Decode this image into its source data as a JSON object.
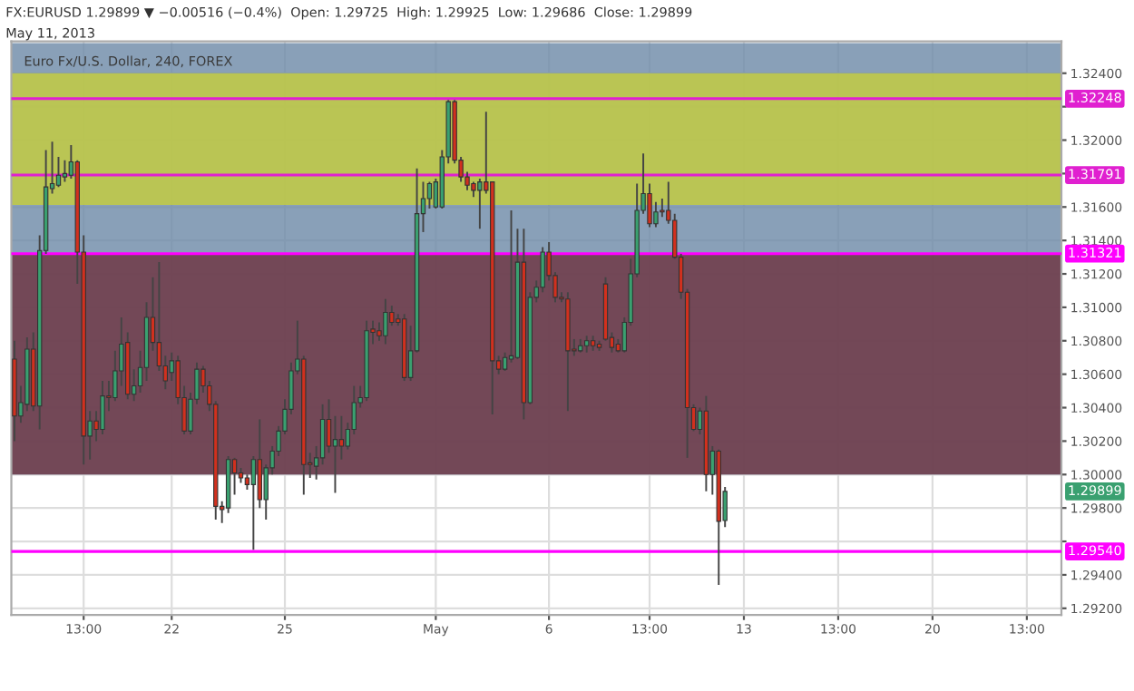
{
  "chart_data": {
    "type": "candlestick",
    "title": "FX:EURUSD 1.29899 ▼ −0.00516 (−0.4%)  Open: 1.29725  High: 1.29925  Low: 1.29686  Close: 1.29899",
    "subtitle": "May 11, 2013",
    "annotations": [
      "Euro Fx/U.S. Dollar, 240, FOREX",
      {
        "text": "1.29899",
        "y": 1.29899
      }
    ],
    "categories": [
      null,
      null,
      null,
      null,
      null,
      null,
      null,
      null,
      null,
      null,
      null,
      "13:00",
      null,
      null,
      null,
      null,
      null,
      null,
      null,
      null,
      null,
      null,
      null,
      null,
      null,
      "22",
      null,
      null,
      null,
      null,
      null,
      null,
      null,
      null,
      null,
      null,
      null,
      null,
      null,
      null,
      null,
      null,
      null,
      "25",
      null,
      null,
      null,
      null,
      null,
      null,
      null,
      null,
      null,
      null,
      null,
      null,
      null,
      null,
      null,
      null,
      null,
      null,
      null,
      null,
      null,
      null,
      null,
      "May",
      null,
      null,
      null,
      null,
      null,
      null,
      null,
      null,
      null,
      null,
      null,
      null,
      null,
      null,
      null,
      null,
      null,
      "6",
      null,
      null,
      null,
      null,
      null,
      null,
      null,
      null,
      null,
      null,
      null,
      null,
      null,
      null,
      null,
      "13:00",
      null,
      null,
      null,
      null,
      null,
      null,
      null,
      null,
      null,
      null,
      null,
      null,
      null,
      null,
      "13",
      null,
      null,
      null,
      null,
      null,
      null,
      null,
      null,
      null,
      null,
      null,
      null,
      null,
      null,
      "13:00",
      null,
      null,
      null,
      null,
      null,
      null,
      null,
      null,
      null,
      null,
      null,
      null,
      null,
      null,
      "20",
      null,
      null,
      null,
      null,
      null,
      null,
      null,
      null,
      null,
      null,
      null,
      null,
      null,
      null,
      "13:00",
      null,
      null,
      null,
      null,
      null
    ],
    "ohlc": [
      [
        1.3069,
        1.308,
        1.302,
        1.3035
      ],
      [
        1.3035,
        1.3053,
        1.3031,
        1.3043
      ],
      [
        1.3042,
        1.3082,
        1.3038,
        1.3075
      ],
      [
        1.3075,
        1.3085,
        1.3038,
        1.3041
      ],
      [
        1.3041,
        1.3143,
        1.3027,
        1.3134
      ],
      [
        1.3134,
        1.3194,
        1.3132,
        1.3172
      ],
      [
        1.3171,
        1.3199,
        1.3168,
        1.3174
      ],
      [
        1.3173,
        1.319,
        1.3172,
        1.3179
      ],
      [
        1.3178,
        1.3188,
        1.3175,
        1.318
      ],
      [
        1.3179,
        1.3197,
        1.3177,
        1.3187
      ],
      [
        1.3187,
        1.3188,
        1.3114,
        1.3133
      ],
      [
        1.3133,
        1.3143,
        1.3006,
        1.3023
      ],
      [
        1.3023,
        1.3038,
        1.3009,
        1.3032
      ],
      [
        1.3032,
        1.3038,
        1.302,
        1.3027
      ],
      [
        1.3027,
        1.3056,
        1.3024,
        1.3047
      ],
      [
        1.3047,
        1.3056,
        1.3038,
        1.3046
      ],
      [
        1.3046,
        1.3074,
        1.3044,
        1.3062
      ],
      [
        1.3062,
        1.3094,
        1.3053,
        1.3078
      ],
      [
        1.3079,
        1.3085,
        1.3045,
        1.3048
      ],
      [
        1.3048,
        1.3063,
        1.3044,
        1.3053
      ],
      [
        1.3053,
        1.3074,
        1.3049,
        1.3064
      ],
      [
        1.3064,
        1.3103,
        1.3056,
        1.3094
      ],
      [
        1.3094,
        1.3118,
        1.3074,
        1.3079
      ],
      [
        1.3079,
        1.3127,
        1.3062,
        1.3065
      ],
      [
        1.3065,
        1.3071,
        1.3051,
        1.3056
      ],
      [
        1.3061,
        1.3073,
        1.3056,
        1.3068
      ],
      [
        1.3068,
        1.3071,
        1.3042,
        1.3046
      ],
      [
        1.3046,
        1.3053,
        1.3024,
        1.3026
      ],
      [
        1.3026,
        1.3049,
        1.3024,
        1.3045
      ],
      [
        1.3045,
        1.3067,
        1.3042,
        1.3063
      ],
      [
        1.3063,
        1.3065,
        1.3049,
        1.3053
      ],
      [
        1.3053,
        1.3056,
        1.3038,
        1.3042
      ],
      [
        1.3042,
        1.3044,
        1.2973,
        1.2981
      ],
      [
        1.2981,
        1.2984,
        1.2971,
        1.2979
      ],
      [
        1.298,
        1.3011,
        1.2977,
        1.3009
      ],
      [
        1.3009,
        1.301,
        1.2988,
        1.3001
      ],
      [
        1.3001,
        1.3004,
        1.2995,
        1.2998
      ],
      [
        1.2998,
        1.3,
        1.2991,
        1.2994
      ],
      [
        1.2994,
        1.3011,
        1.2955,
        1.3009
      ],
      [
        1.3009,
        1.3033,
        1.298,
        1.2985
      ],
      [
        1.2985,
        1.3006,
        1.2973,
        1.3004
      ],
      [
        1.3004,
        1.3017,
        1.3,
        1.3014
      ],
      [
        1.3014,
        1.3029,
        1.3011,
        1.3026
      ],
      [
        1.3026,
        1.3045,
        1.3024,
        1.3039
      ],
      [
        1.3039,
        1.3067,
        1.3036,
        1.3062
      ],
      [
        1.3062,
        1.3092,
        1.306,
        1.3069
      ],
      [
        1.3069,
        1.3071,
        1.2988,
        1.3006
      ],
      [
        1.3007,
        1.3013,
        1.2998,
        1.3006
      ],
      [
        1.3005,
        1.3017,
        1.2997,
        1.301
      ],
      [
        1.301,
        1.3042,
        1.3006,
        1.3033
      ],
      [
        1.3033,
        1.3045,
        1.3013,
        1.3017
      ],
      [
        1.3017,
        1.3035,
        1.2989,
        1.3021
      ],
      [
        1.3021,
        1.3035,
        1.3009,
        1.3017
      ],
      [
        1.3017,
        1.3031,
        1.3015,
        1.3027
      ],
      [
        1.3027,
        1.3053,
        1.3024,
        1.3043
      ],
      [
        1.3043,
        1.3053,
        1.304,
        1.3046
      ],
      [
        1.3046,
        1.3092,
        1.3044,
        1.3086
      ],
      [
        1.3087,
        1.3092,
        1.3078,
        1.3085
      ],
      [
        1.3086,
        1.3091,
        1.308,
        1.3083
      ],
      [
        1.3083,
        1.3105,
        1.3078,
        1.3097
      ],
      [
        1.3097,
        1.3101,
        1.3089,
        1.3091
      ],
      [
        1.3093,
        1.3096,
        1.3089,
        1.3091
      ],
      [
        1.3093,
        1.3096,
        1.3056,
        1.3058
      ],
      [
        1.3058,
        1.3089,
        1.3056,
        1.3074
      ],
      [
        1.3074,
        1.3183,
        1.3073,
        1.3156
      ],
      [
        1.3156,
        1.3175,
        1.3145,
        1.3165
      ],
      [
        1.3165,
        1.3175,
        1.3159,
        1.3174
      ],
      [
        1.316,
        1.3177,
        1.3159,
        1.3175
      ],
      [
        1.316,
        1.3194,
        1.3159,
        1.319
      ],
      [
        1.319,
        1.3224,
        1.3186,
        1.3223
      ],
      [
        1.3223,
        1.3224,
        1.3186,
        1.3188
      ],
      [
        1.3188,
        1.319,
        1.3175,
        1.3178
      ],
      [
        1.3178,
        1.3181,
        1.317,
        1.3173
      ],
      [
        1.3174,
        1.3175,
        1.3166,
        1.317
      ],
      [
        1.317,
        1.3177,
        1.3147,
        1.3175
      ],
      [
        1.3175,
        1.3217,
        1.3168,
        1.317
      ],
      [
        1.3175,
        1.3175,
        1.3036,
        1.3068
      ],
      [
        1.3068,
        1.3071,
        1.306,
        1.3063
      ],
      [
        1.3063,
        1.3073,
        1.3062,
        1.307
      ],
      [
        1.3069,
        1.3158,
        1.3067,
        1.3071
      ],
      [
        1.307,
        1.3147,
        1.3069,
        1.3127
      ],
      [
        1.3127,
        1.3147,
        1.3033,
        1.3043
      ],
      [
        1.3043,
        1.3109,
        1.3042,
        1.3106
      ],
      [
        1.3106,
        1.3116,
        1.3103,
        1.3112
      ],
      [
        1.3112,
        1.3136,
        1.3109,
        1.3133
      ],
      [
        1.3133,
        1.3139,
        1.3116,
        1.3119
      ],
      [
        1.3119,
        1.3121,
        1.3103,
        1.3106
      ],
      [
        1.3106,
        1.3109,
        1.3103,
        1.3105
      ],
      [
        1.3105,
        1.3109,
        1.3038,
        1.3074
      ],
      [
        1.3075,
        1.3081,
        1.3071,
        1.3074
      ],
      [
        1.3074,
        1.3081,
        1.3073,
        1.3077
      ],
      [
        1.3077,
        1.3083,
        1.3073,
        1.308
      ],
      [
        1.308,
        1.3083,
        1.3074,
        1.3077
      ],
      [
        1.3078,
        1.308,
        1.3074,
        1.3076
      ],
      [
        1.3114,
        1.3118,
        1.308,
        1.3081
      ],
      [
        1.3082,
        1.3085,
        1.3073,
        1.3076
      ],
      [
        1.3078,
        1.3081,
        1.3073,
        1.3074
      ],
      [
        1.3074,
        1.3094,
        1.3073,
        1.3091
      ],
      [
        1.3091,
        1.3129,
        1.3089,
        1.312
      ],
      [
        1.312,
        1.3174,
        1.3118,
        1.3158
      ],
      [
        1.3158,
        1.3192,
        1.3156,
        1.3168
      ],
      [
        1.3168,
        1.3174,
        1.3148,
        1.315
      ],
      [
        1.315,
        1.3163,
        1.3148,
        1.3157
      ],
      [
        1.3158,
        1.3165,
        1.3154,
        1.3157
      ],
      [
        1.3158,
        1.3175,
        1.315,
        1.3152
      ],
      [
        1.3152,
        1.3156,
        1.3129,
        1.313
      ],
      [
        1.313,
        1.3132,
        1.3105,
        1.3109
      ],
      [
        1.3109,
        1.3111,
        1.301,
        1.304
      ],
      [
        1.304,
        1.3042,
        1.3026,
        1.3027
      ],
      [
        1.3027,
        1.304,
        1.3024,
        1.3038
      ],
      [
        1.3038,
        1.3047,
        1.299,
        1.3
      ],
      [
        1.3,
        1.3017,
        1.2988,
        1.3014
      ],
      [
        1.3014,
        1.3015,
        1.2934,
        1.2972
      ],
      [
        1.29725,
        1.29925,
        1.29686,
        1.29899
      ],
      null,
      null,
      null,
      null,
      null,
      null,
      null,
      null,
      null,
      null,
      null,
      null,
      null,
      null,
      null,
      null,
      null,
      null,
      null,
      null,
      null,
      null,
      null,
      null,
      null,
      null,
      null,
      null,
      null,
      null,
      null,
      null,
      null,
      null,
      null,
      null,
      null,
      null,
      null,
      null,
      null,
      null,
      null,
      null,
      null,
      null,
      null,
      null,
      null,
      null,
      null,
      null,
      null
    ],
    "ylim": [
      1.2916,
      1.3259
    ],
    "yticks": [
      {
        "value": 1.292,
        "label": "1.29200"
      },
      {
        "value": 1.294,
        "label": "1.29400"
      },
      {
        "value": 1.296,
        "label": null
      },
      {
        "value": 1.298,
        "label": "1.29800"
      },
      {
        "value": 1.3,
        "label": "1.30000"
      },
      {
        "value": 1.302,
        "label": "1.30200"
      },
      {
        "value": 1.304,
        "label": "1.30400"
      },
      {
        "value": 1.306,
        "label": "1.30600"
      },
      {
        "value": 1.308,
        "label": "1.30800"
      },
      {
        "value": 1.31,
        "label": "1.31000"
      },
      {
        "value": 1.312,
        "label": "1.31200"
      },
      {
        "value": 1.314,
        "label": "1.31400"
      },
      {
        "value": 1.316,
        "label": "1.31600"
      },
      {
        "value": 1.318,
        "label": null
      },
      {
        "value": 1.32,
        "label": "1.32000"
      },
      {
        "value": 1.322,
        "label": null
      },
      {
        "value": 1.324,
        "label": "1.32400"
      }
    ],
    "bands": [
      {
        "axis": "y",
        "from": 1.3,
        "to": 1.3258,
        "color": "#6f8ba8"
      },
      {
        "axis": "y",
        "from": 1.3,
        "to": 1.31321,
        "color": "#6e3442"
      },
      {
        "axis": "y",
        "from": 1.31612,
        "to": 1.324,
        "color": "#c4cd3e"
      }
    ],
    "ref_lines": [
      {
        "axis": "y",
        "value": 1.32248,
        "label": "1.32248",
        "color": "#e020d0"
      },
      {
        "axis": "y",
        "value": 1.31791,
        "label": "1.31791",
        "color": "#e020d0"
      },
      {
        "axis": "y",
        "value": 1.31321,
        "label": "1.31321",
        "color": "#ff00ff"
      },
      {
        "axis": "y",
        "value": 1.2954,
        "label": "1.29540",
        "color": "#ff00ff"
      }
    ],
    "grid": true
  }
}
